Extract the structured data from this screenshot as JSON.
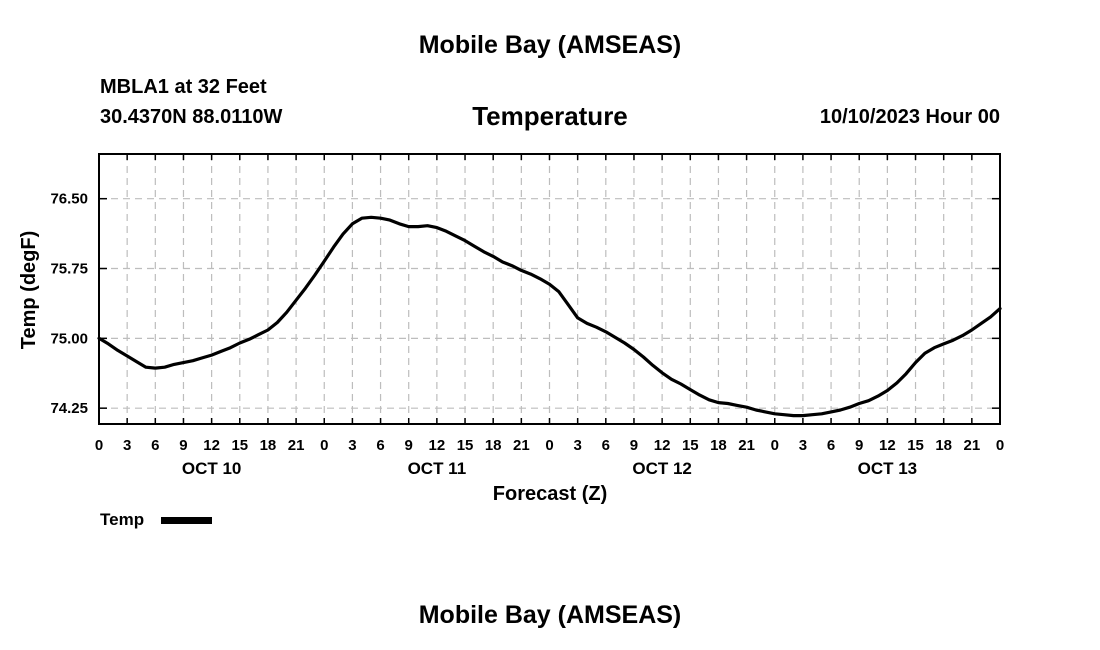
{
  "page": {
    "top_title": "Mobile Bay (AMSEAS)",
    "bottom_title": "Mobile Bay (AMSEAS)",
    "station": "MBLA1 at 32 Feet",
    "coords": "30.4370N  88.0110W",
    "plot_title": "Temperature",
    "date": "10/10/2023 Hour 00"
  },
  "chart_data": {
    "type": "line",
    "title": "Temperature",
    "xlabel": "Forecast (Z)",
    "ylabel": "Temp (degF)",
    "xlim": [
      0,
      96
    ],
    "ylim": [
      74.08,
      76.98
    ],
    "yticks": [
      74.25,
      75.0,
      75.75,
      76.5
    ],
    "ytick_labels": [
      "74.25",
      "75.00",
      "75.75",
      "76.50"
    ],
    "x_tick_step": 3,
    "x_tick_labels": [
      "0",
      "3",
      "6",
      "9",
      "12",
      "15",
      "18",
      "21",
      "0",
      "3",
      "6",
      "9",
      "12",
      "15",
      "18",
      "21",
      "0",
      "3",
      "6",
      "9",
      "12",
      "15",
      "18",
      "21",
      "0",
      "3",
      "6",
      "9",
      "12",
      "15",
      "18",
      "21",
      "0"
    ],
    "day_labels": [
      {
        "label": "OCT 10",
        "hour": 12
      },
      {
        "label": "OCT 11",
        "hour": 36
      },
      {
        "label": "OCT 12",
        "hour": 60
      },
      {
        "label": "OCT 13",
        "hour": 84
      }
    ],
    "grid": true,
    "legend": [
      {
        "name": "Temp",
        "position": "bottom-left"
      }
    ],
    "series": [
      {
        "name": "Temp",
        "x": [
          0,
          1,
          2,
          3,
          4,
          5,
          6,
          7,
          8,
          9,
          10,
          11,
          12,
          13,
          14,
          15,
          16,
          17,
          18,
          19,
          20,
          21,
          22,
          23,
          24,
          25,
          26,
          27,
          28,
          29,
          30,
          31,
          32,
          33,
          34,
          35,
          36,
          37,
          38,
          39,
          40,
          41,
          42,
          43,
          44,
          45,
          46,
          47,
          48,
          49,
          50,
          51,
          52,
          53,
          54,
          55,
          56,
          57,
          58,
          59,
          60,
          61,
          62,
          63,
          64,
          65,
          66,
          67,
          68,
          69,
          70,
          71,
          72,
          73,
          74,
          75,
          76,
          77,
          78,
          79,
          80,
          81,
          82,
          83,
          84,
          85,
          86,
          87,
          88,
          89,
          90,
          91,
          92,
          93,
          94,
          95,
          96
        ],
        "values": [
          75.0,
          74.94,
          74.87,
          74.81,
          74.75,
          74.69,
          74.68,
          74.69,
          74.72,
          74.74,
          74.76,
          74.79,
          74.82,
          74.86,
          74.9,
          74.95,
          74.99,
          75.04,
          75.09,
          75.17,
          75.28,
          75.41,
          75.54,
          75.68,
          75.83,
          75.98,
          76.12,
          76.23,
          76.29,
          76.3,
          76.29,
          76.27,
          76.23,
          76.2,
          76.2,
          76.21,
          76.19,
          76.15,
          76.1,
          76.05,
          75.99,
          75.93,
          75.88,
          75.82,
          75.78,
          75.73,
          75.69,
          75.64,
          75.58,
          75.5,
          75.36,
          75.22,
          75.16,
          75.12,
          75.07,
          75.01,
          74.95,
          74.88,
          74.8,
          74.71,
          74.63,
          74.56,
          74.51,
          74.45,
          74.39,
          74.34,
          74.31,
          74.3,
          74.28,
          74.26,
          74.23,
          74.21,
          74.19,
          74.18,
          74.17,
          74.17,
          74.18,
          74.19,
          74.21,
          74.23,
          74.26,
          74.3,
          74.33,
          74.38,
          74.44,
          74.52,
          74.62,
          74.74,
          74.84,
          74.9,
          74.94,
          74.98,
          75.03,
          75.09,
          75.16,
          75.23,
          75.32
        ]
      }
    ]
  }
}
